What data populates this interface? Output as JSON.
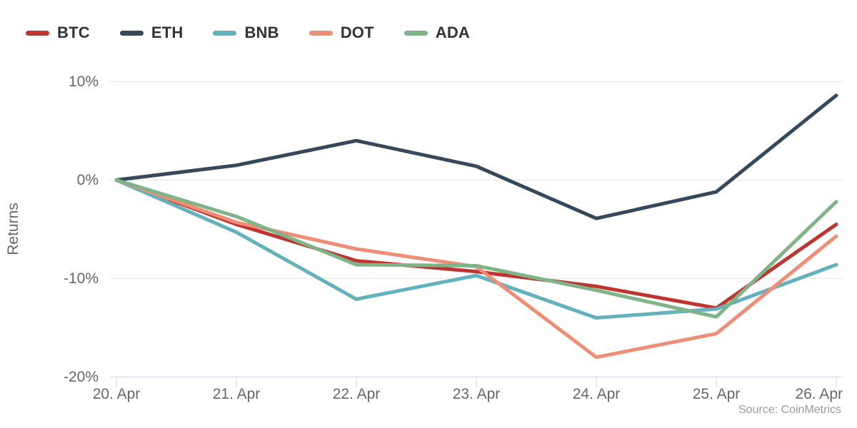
{
  "chart_data": {
    "type": "line",
    "title": "",
    "xlabel": "",
    "ylabel": "Returns",
    "source": "Source: CoinMetrics",
    "legend_position": "top",
    "grid": true,
    "ylim": [
      -20,
      10
    ],
    "y_ticks": [
      {
        "label": "10%",
        "value": 10
      },
      {
        "label": "0%",
        "value": 0
      },
      {
        "label": "-10%",
        "value": -10
      },
      {
        "label": "-20%",
        "value": -20
      }
    ],
    "categories": [
      "20. Apr",
      "21. Apr",
      "22. Apr",
      "23. Apr",
      "24. Apr",
      "25. Apr",
      "26. Apr"
    ],
    "series": [
      {
        "name": "BTC",
        "color": "#c0342f",
        "values": [
          0,
          -4.5,
          -8.2,
          -9.3,
          -10.8,
          -13.0,
          -4.5
        ]
      },
      {
        "name": "ETH",
        "color": "#35495d",
        "values": [
          0,
          1.5,
          4.0,
          1.4,
          -3.9,
          -1.2,
          8.6
        ]
      },
      {
        "name": "BNB",
        "color": "#63b1bc",
        "values": [
          0,
          -5.3,
          -12.1,
          -9.7,
          -14.0,
          -13.1,
          -8.6
        ]
      },
      {
        "name": "DOT",
        "color": "#ee8e76",
        "values": [
          0,
          -4.3,
          -7.0,
          -8.8,
          -18.0,
          -15.6,
          -5.7
        ]
      },
      {
        "name": "ADA",
        "color": "#7fb388",
        "values": [
          0,
          -3.7,
          -8.6,
          -8.7,
          -11.2,
          -13.9,
          -2.2
        ]
      }
    ],
    "colors": {
      "axis_line": "#ccd6eb",
      "gridline": "#e6e6e6",
      "tick_text": "#666666",
      "legend_text": "#333333",
      "source_text": "#999999"
    }
  }
}
